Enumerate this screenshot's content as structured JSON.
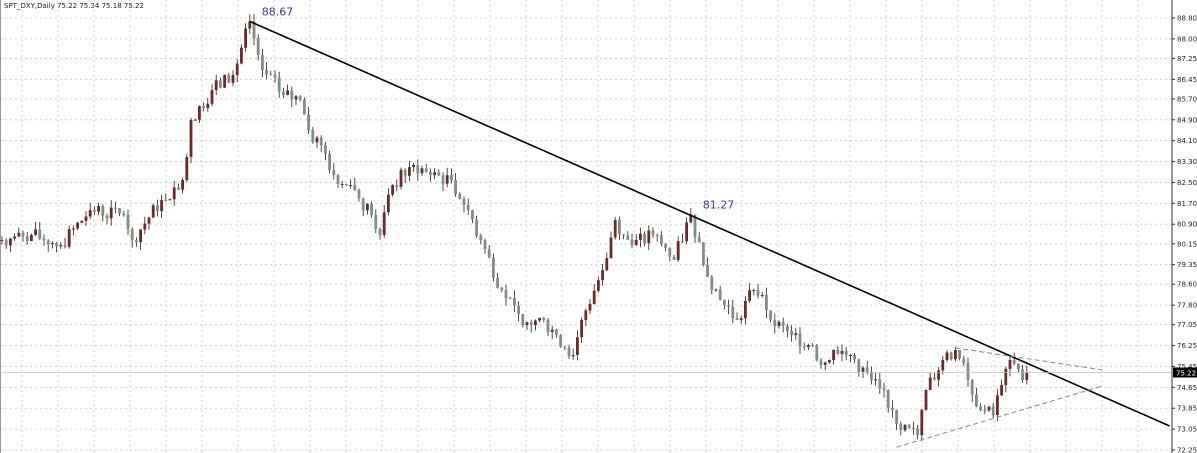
{
  "header": {
    "symbol": "SPT_DXY,Daily",
    "ohlc": "75.22 75.34 75.18 75.22"
  },
  "chart_data": {
    "type": "candlestick",
    "timeframe": "Daily",
    "x_unit": "bar index",
    "ylim": [
      72.25,
      88.8
    ],
    "y_ticks": [
      "88.80",
      "88.00",
      "87.25",
      "86.45",
      "85.70",
      "84.90",
      "84.10",
      "83.30",
      "82.50",
      "81.70",
      "80.90",
      "80.15",
      "79.35",
      "78.60",
      "77.80",
      "77.05",
      "76.25",
      "75.45",
      "74.65",
      "73.85",
      "73.05",
      "72.25"
    ],
    "current_price": "75.22",
    "grid": true,
    "colors": {
      "bull": "#6b2a2a",
      "bear": "#7f8f84",
      "trendline": "#000000",
      "triangle": "#6f9a7a",
      "annotation": "#3a3a9a",
      "price_tag_bg": "#000000"
    },
    "close_path": [
      [
        0,
        80.29
      ],
      [
        7,
        80.49
      ],
      [
        14,
        80.1
      ],
      [
        21,
        81.44
      ],
      [
        29,
        81.25
      ],
      [
        31,
        80.29
      ],
      [
        38,
        81.83
      ],
      [
        43,
        82.59
      ],
      [
        45,
        84.89
      ],
      [
        50,
        86.04
      ],
      [
        55,
        86.62
      ],
      [
        59,
        88.67
      ],
      [
        62,
        86.81
      ],
      [
        67,
        85.85
      ],
      [
        71,
        85.66
      ],
      [
        73,
        84.51
      ],
      [
        76,
        83.93
      ],
      [
        79,
        82.78
      ],
      [
        83,
        82.4
      ],
      [
        88,
        81.25
      ],
      [
        90,
        80.49
      ],
      [
        93,
        82.4
      ],
      [
        98,
        83.17
      ],
      [
        102,
        82.78
      ],
      [
        107,
        82.59
      ],
      [
        111,
        81.44
      ],
      [
        114,
        80.29
      ],
      [
        119,
        78.38
      ],
      [
        124,
        77.04
      ],
      [
        129,
        77.23
      ],
      [
        132,
        76.65
      ],
      [
        136,
        75.89
      ],
      [
        138,
        77.23
      ],
      [
        143,
        79.14
      ],
      [
        146,
        81.06
      ],
      [
        150,
        80.1
      ],
      [
        155,
        80.49
      ],
      [
        160,
        79.53
      ],
      [
        164,
        81.27
      ],
      [
        167,
        79.34
      ],
      [
        171,
        78.0
      ],
      [
        175,
        77.23
      ],
      [
        179,
        78.38
      ],
      [
        181,
        78.19
      ],
      [
        183,
        77.23
      ],
      [
        188,
        76.65
      ],
      [
        193,
        76.27
      ],
      [
        195,
        75.51
      ],
      [
        198,
        76.08
      ],
      [
        202,
        75.89
      ],
      [
        207,
        74.93
      ],
      [
        210,
        74.55
      ],
      [
        212,
        73.78
      ],
      [
        214,
        73.01
      ],
      [
        218,
        72.82
      ],
      [
        220,
        74.55
      ],
      [
        224,
        75.7
      ],
      [
        227,
        76.08
      ],
      [
        230,
        74.93
      ],
      [
        233,
        73.78
      ],
      [
        236,
        73.59
      ],
      [
        238,
        74.74
      ],
      [
        240,
        75.7
      ],
      [
        243,
        74.93
      ],
      [
        244,
        75.22
      ]
    ],
    "trendlines": [
      {
        "style": "solid",
        "from": [
          59,
          88.67
        ],
        "to": [
          278,
          73.17
        ]
      },
      {
        "style": "dashed",
        "from": [
          227,
          76.16
        ],
        "to": [
          262,
          75.32
        ]
      },
      {
        "style": "dashed",
        "from": [
          213,
          72.36
        ],
        "to": [
          262,
          74.7
        ]
      }
    ],
    "annotations": [
      {
        "text": "88.67",
        "at": [
          59,
          88.67
        ]
      },
      {
        "text": "81.27",
        "at": [
          164,
          81.27
        ]
      }
    ]
  }
}
